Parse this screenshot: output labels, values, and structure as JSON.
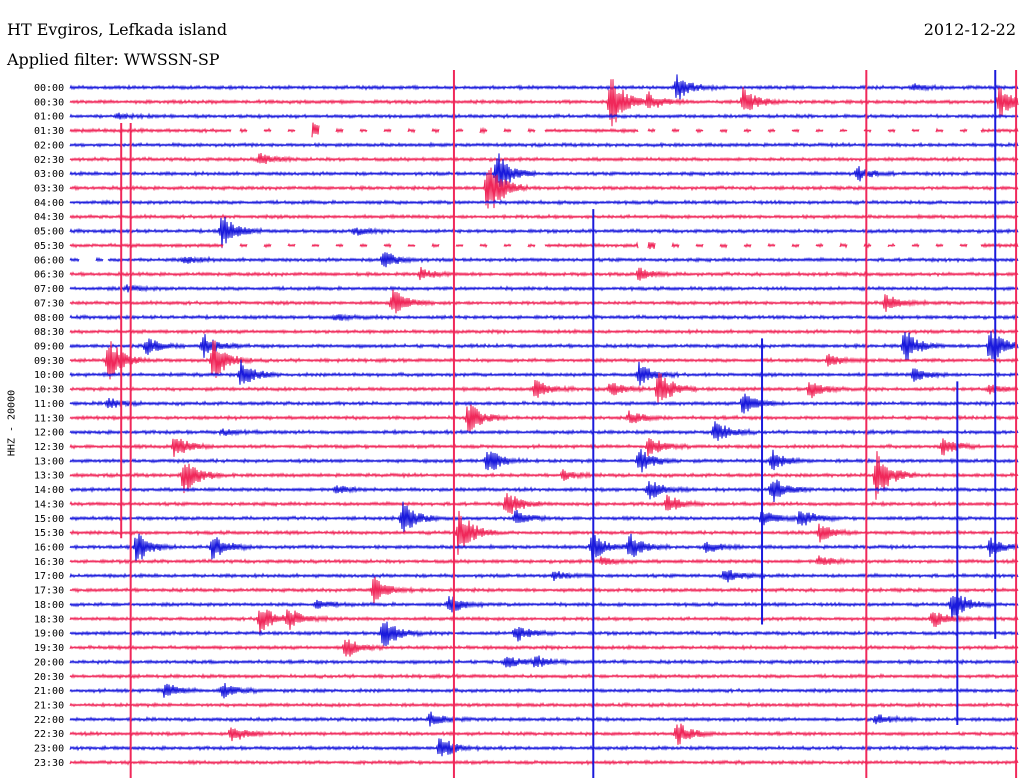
{
  "header": {
    "station": "HT Evgiros, Lefkada island",
    "filter": "Applied filter: WWSSN-SP",
    "date": "2012-12-22"
  },
  "channel_label": "HHZ - 20000",
  "colors": {
    "blue": "#1a1adc",
    "red": "#f0285a"
  },
  "chart_data": {
    "type": "line",
    "title": "HT Evgiros, Lefkada island",
    "subtitle": "Applied filter: WWSSN-SP",
    "date": "2012-12-22",
    "ylabel": "HHZ - 20000",
    "row_labels": [
      "00:00",
      "00:30",
      "01:00",
      "01:30",
      "02:00",
      "02:30",
      "03:00",
      "03:30",
      "04:00",
      "04:30",
      "05:00",
      "05:30",
      "06:00",
      "06:30",
      "07:00",
      "07:30",
      "08:00",
      "08:30",
      "09:00",
      "09:30",
      "10:00",
      "10:30",
      "11:00",
      "11:30",
      "12:00",
      "12:30",
      "13:00",
      "13:30",
      "14:00",
      "14:30",
      "15:00",
      "15:30",
      "16:00",
      "16:30",
      "17:00",
      "17:30",
      "18:00",
      "18:30",
      "19:00",
      "19:30",
      "20:00",
      "20:30",
      "21:00",
      "21:30",
      "22:00",
      "22:30",
      "23:00",
      "23:30"
    ],
    "row_colors": "alternating blue / red, starting blue",
    "row_duration_min": 30,
    "events": [
      {
        "row": 0,
        "t": 0.64,
        "amp": 1.8
      },
      {
        "row": 0,
        "t": 0.89,
        "amp": 0.4
      },
      {
        "row": 1,
        "t": 0.57,
        "amp": 4.0
      },
      {
        "row": 1,
        "t": 0.61,
        "amp": 1.2
      },
      {
        "row": 1,
        "t": 0.71,
        "amp": 1.8
      },
      {
        "row": 1,
        "t": 0.98,
        "amp": 2.2
      },
      {
        "row": 2,
        "t": 0.05,
        "amp": 0.3
      },
      {
        "row": 3,
        "t": 0.25,
        "amp": 1.5
      },
      {
        "row": 3,
        "t": 0.42,
        "amp": 0.4
      },
      {
        "row": 5,
        "t": 0.2,
        "amp": 0.8
      },
      {
        "row": 6,
        "t": 0.45,
        "amp": 3.0
      },
      {
        "row": 6,
        "t": 0.83,
        "amp": 1.0
      },
      {
        "row": 7,
        "t": 0.44,
        "amp": 4.5
      },
      {
        "row": 10,
        "t": 0.16,
        "amp": 2.2
      },
      {
        "row": 10,
        "t": 0.3,
        "amp": 0.5
      },
      {
        "row": 11,
        "t": 0.6,
        "amp": 0.8
      },
      {
        "row": 12,
        "t": 0.33,
        "amp": 1.2
      },
      {
        "row": 12,
        "t": 0.12,
        "amp": 0.5
      },
      {
        "row": 13,
        "t": 0.37,
        "amp": 0.7
      },
      {
        "row": 13,
        "t": 0.6,
        "amp": 0.8
      },
      {
        "row": 14,
        "t": 0.06,
        "amp": 0.4
      },
      {
        "row": 15,
        "t": 0.34,
        "amp": 1.8
      },
      {
        "row": 15,
        "t": 0.86,
        "amp": 1.2
      },
      {
        "row": 16,
        "t": 0.28,
        "amp": 0.4
      },
      {
        "row": 18,
        "t": 0.08,
        "amp": 1.2
      },
      {
        "row": 18,
        "t": 0.14,
        "amp": 1.6
      },
      {
        "row": 18,
        "t": 0.88,
        "amp": 2.2
      },
      {
        "row": 18,
        "t": 0.97,
        "amp": 2.5
      },
      {
        "row": 19,
        "t": 0.04,
        "amp": 3.2
      },
      {
        "row": 19,
        "t": 0.15,
        "amp": 3.0
      },
      {
        "row": 19,
        "t": 0.8,
        "amp": 0.8
      },
      {
        "row": 20,
        "t": 0.18,
        "amp": 1.8
      },
      {
        "row": 20,
        "t": 0.6,
        "amp": 1.5
      },
      {
        "row": 20,
        "t": 0.89,
        "amp": 0.9
      },
      {
        "row": 21,
        "t": 0.49,
        "amp": 1.2
      },
      {
        "row": 21,
        "t": 0.57,
        "amp": 1.0
      },
      {
        "row": 21,
        "t": 0.62,
        "amp": 2.8
      },
      {
        "row": 21,
        "t": 0.78,
        "amp": 1.2
      },
      {
        "row": 21,
        "t": 0.97,
        "amp": 0.6
      },
      {
        "row": 22,
        "t": 0.04,
        "amp": 0.7
      },
      {
        "row": 22,
        "t": 0.71,
        "amp": 1.6
      },
      {
        "row": 23,
        "t": 0.42,
        "amp": 2.2
      },
      {
        "row": 23,
        "t": 0.59,
        "amp": 0.9
      },
      {
        "row": 24,
        "t": 0.68,
        "amp": 1.6
      },
      {
        "row": 24,
        "t": 0.16,
        "amp": 0.4
      },
      {
        "row": 25,
        "t": 0.11,
        "amp": 1.5
      },
      {
        "row": 25,
        "t": 0.61,
        "amp": 1.3
      },
      {
        "row": 25,
        "t": 0.92,
        "amp": 1.3
      },
      {
        "row": 26,
        "t": 0.44,
        "amp": 2.0
      },
      {
        "row": 26,
        "t": 0.6,
        "amp": 1.8
      },
      {
        "row": 26,
        "t": 0.74,
        "amp": 1.4
      },
      {
        "row": 27,
        "t": 0.12,
        "amp": 3.0
      },
      {
        "row": 27,
        "t": 0.85,
        "amp": 3.5
      },
      {
        "row": 27,
        "t": 0.52,
        "amp": 0.6
      },
      {
        "row": 28,
        "t": 0.28,
        "amp": 0.6
      },
      {
        "row": 28,
        "t": 0.61,
        "amp": 1.6
      },
      {
        "row": 28,
        "t": 0.74,
        "amp": 1.8
      },
      {
        "row": 29,
        "t": 0.46,
        "amp": 1.8
      },
      {
        "row": 29,
        "t": 0.63,
        "amp": 1.2
      },
      {
        "row": 30,
        "t": 0.35,
        "amp": 2.2
      },
      {
        "row": 30,
        "t": 0.47,
        "amp": 1.0
      },
      {
        "row": 30,
        "t": 0.73,
        "amp": 1.4
      },
      {
        "row": 30,
        "t": 0.77,
        "amp": 1.4
      },
      {
        "row": 31,
        "t": 0.41,
        "amp": 3.5
      },
      {
        "row": 31,
        "t": 0.79,
        "amp": 1.2
      },
      {
        "row": 32,
        "t": 0.07,
        "amp": 2.2
      },
      {
        "row": 32,
        "t": 0.15,
        "amp": 1.8
      },
      {
        "row": 32,
        "t": 0.55,
        "amp": 1.8
      },
      {
        "row": 32,
        "t": 0.59,
        "amp": 1.8
      },
      {
        "row": 32,
        "t": 0.67,
        "amp": 0.8
      },
      {
        "row": 32,
        "t": 0.97,
        "amp": 1.2
      },
      {
        "row": 33,
        "t": 0.56,
        "amp": 0.6
      },
      {
        "row": 33,
        "t": 0.79,
        "amp": 0.8
      },
      {
        "row": 34,
        "t": 0.51,
        "amp": 0.6
      },
      {
        "row": 34,
        "t": 0.69,
        "amp": 1.0
      },
      {
        "row": 35,
        "t": 0.32,
        "amp": 1.8
      },
      {
        "row": 36,
        "t": 0.4,
        "amp": 1.2
      },
      {
        "row": 36,
        "t": 0.93,
        "amp": 2.5
      },
      {
        "row": 36,
        "t": 0.26,
        "amp": 0.6
      },
      {
        "row": 37,
        "t": 0.2,
        "amp": 2.0
      },
      {
        "row": 37,
        "t": 0.23,
        "amp": 1.5
      },
      {
        "row": 37,
        "t": 0.91,
        "amp": 1.2
      },
      {
        "row": 38,
        "t": 0.33,
        "amp": 2.2
      },
      {
        "row": 38,
        "t": 0.47,
        "amp": 1.2
      },
      {
        "row": 39,
        "t": 0.29,
        "amp": 1.5
      },
      {
        "row": 40,
        "t": 0.46,
        "amp": 0.8
      },
      {
        "row": 40,
        "t": 0.49,
        "amp": 0.8
      },
      {
        "row": 42,
        "t": 0.1,
        "amp": 1.0
      },
      {
        "row": 42,
        "t": 0.16,
        "amp": 1.0
      },
      {
        "row": 44,
        "t": 0.38,
        "amp": 1.0
      },
      {
        "row": 44,
        "t": 0.85,
        "amp": 0.8
      },
      {
        "row": 45,
        "t": 0.17,
        "amp": 1.2
      },
      {
        "row": 45,
        "t": 0.64,
        "amp": 1.6
      },
      {
        "row": 46,
        "t": 0.39,
        "amp": 1.5
      }
    ],
    "vertical_spikes": [
      {
        "t": 0.054,
        "rows": [
          4,
          30
        ],
        "color": "red"
      },
      {
        "t": 0.064,
        "rows": [
          4,
          47
        ],
        "color": "red"
      },
      {
        "t": 0.405,
        "rows": [
          0,
          47
        ],
        "color": "red"
      },
      {
        "t": 0.84,
        "rows": [
          0,
          47
        ],
        "color": "red"
      },
      {
        "t": 0.552,
        "rows": [
          10,
          47
        ],
        "color": "blue"
      },
      {
        "t": 0.976,
        "rows": [
          0,
          37
        ],
        "color": "blue"
      },
      {
        "t": 0.998,
        "rows": [
          0,
          47
        ],
        "color": "red"
      },
      {
        "t": 0.73,
        "rows": [
          19,
          36
        ],
        "color": "blue"
      },
      {
        "t": 0.936,
        "rows": [
          22,
          43
        ],
        "color": "blue"
      }
    ],
    "gaps": [
      {
        "row": 3,
        "from": 0.17,
        "to": 0.5
      },
      {
        "row": 3,
        "from": 0.6,
        "to": 0.96
      },
      {
        "row": 11,
        "from": 0.16,
        "to": 0.5
      },
      {
        "row": 11,
        "from": 0.6,
        "to": 0.96
      },
      {
        "row": 12,
        "from": 0.01,
        "to": 0.04
      }
    ]
  }
}
